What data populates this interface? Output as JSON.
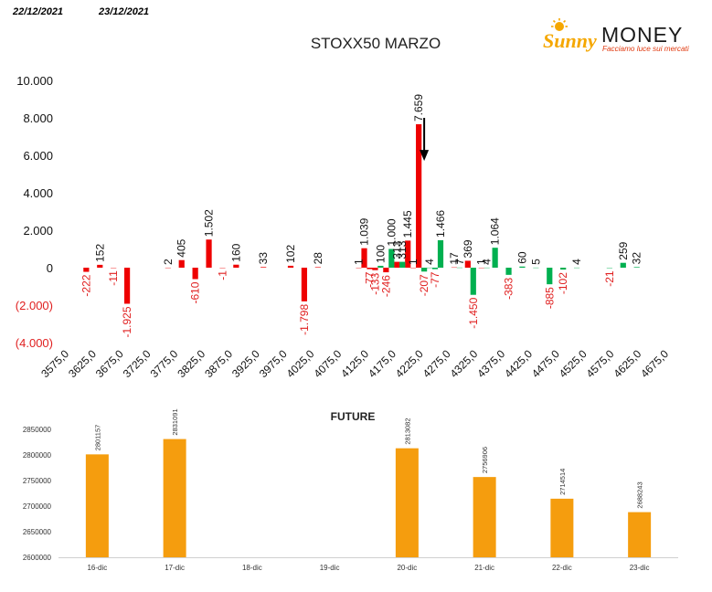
{
  "header": {
    "date1": "22/12/2021",
    "date2": "23/12/2021"
  },
  "logo": {
    "brand_left": "Sunny",
    "brand_right": "MONEY",
    "tagline": "Facciamo luce sui mercati",
    "colors": {
      "sun": "#f5a700",
      "brand": "#1a1a1a",
      "tagline": "#e03a10"
    }
  },
  "colors": {
    "red": "#ee0000",
    "green": "#00b050",
    "future": "#f59d0e",
    "negative_label": "#e02020",
    "arrow": "#000000"
  },
  "chart_data": [
    {
      "type": "bar",
      "title": "STOXX50 MARZO",
      "ylim": [
        -4000,
        10000
      ],
      "yticks": [
        10000,
        8000,
        6000,
        4000,
        2000,
        0,
        -2000,
        -4000
      ],
      "ytick_labels": [
        "10.000",
        "8.000",
        "6.000",
        "4.000",
        "2.000",
        "0",
        "(2.000)",
        "(4.000)"
      ],
      "xtick_labels": [
        "3575,0",
        "3625,0",
        "3675,0",
        "3725,0",
        "3775,0",
        "3825,0",
        "3875,0",
        "3925,0",
        "3975,0",
        "4025,0",
        "4075,0",
        "4125,0",
        "4175,0",
        "4225,0",
        "4275,0",
        "4325,0",
        "4375,0",
        "4425,0",
        "4475,0",
        "4525,0",
        "4575,0",
        "4625,0",
        "4675,0"
      ],
      "series": [
        {
          "color": "red",
          "points": [
            {
              "strike": 3612.5,
              "value": -222,
              "label": "-222"
            },
            {
              "strike": 3637.5,
              "value": 152,
              "label": "152"
            },
            {
              "strike": 3662.5,
              "value": -11,
              "label": "-11"
            },
            {
              "strike": 3687.5,
              "value": -1925,
              "label": "-1.925"
            },
            {
              "strike": 3762.5,
              "value": 2,
              "label": "2"
            },
            {
              "strike": 3787.5,
              "value": 405,
              "label": "405"
            },
            {
              "strike": 3812.5,
              "value": -610,
              "label": "-610"
            },
            {
              "strike": 3837.5,
              "value": 1502,
              "label": "1.502"
            },
            {
              "strike": 3862.5,
              "value": -1,
              "label": "-1"
            },
            {
              "strike": 3887.5,
              "value": 160,
              "label": "160"
            },
            {
              "strike": 3937.5,
              "value": 33,
              "label": "33"
            },
            {
              "strike": 3987.5,
              "value": 102,
              "label": "102"
            },
            {
              "strike": 4012.5,
              "value": -1798,
              "label": "-1.798"
            },
            {
              "strike": 4037.5,
              "value": 28,
              "label": "28"
            },
            {
              "strike": 4112.5,
              "value": 1,
              "label": "1"
            },
            {
              "strike": 4122.5,
              "value": 1039,
              "label": "1.039"
            },
            {
              "strike": 4132.5,
              "value": -77,
              "label": "-77"
            },
            {
              "strike": 4142.5,
              "value": -133,
              "label": "-133"
            },
            {
              "strike": 4162.5,
              "value": -246,
              "label": "-246"
            },
            {
              "strike": 4182.5,
              "value": 313,
              "label": "313"
            },
            {
              "strike": 4202.5,
              "value": 1445,
              "label": "1.445"
            },
            {
              "strike": 4212.5,
              "value": 1,
              "label": "1"
            },
            {
              "strike": 4222.5,
              "value": 7659,
              "label": "7.659"
            },
            {
              "strike": 4287.5,
              "value": 17,
              "label": "17"
            },
            {
              "strike": 4312.5,
              "value": 369,
              "label": "369"
            },
            {
              "strike": 4337.5,
              "value": 1,
              "label": "1"
            }
          ]
        },
        {
          "color": "green",
          "points": [
            {
              "strike": 4152.5,
              "value": 100,
              "label": "100"
            },
            {
              "strike": 4172.5,
              "value": 1000,
              "label": "1.000"
            },
            {
              "strike": 4192.5,
              "value": 313,
              "label": "313"
            },
            {
              "strike": 4232.5,
              "value": -207,
              "label": "-207"
            },
            {
              "strike": 4242.5,
              "value": 4,
              "label": "4"
            },
            {
              "strike": 4252.5,
              "value": -77,
              "label": "-77"
            },
            {
              "strike": 4262.5,
              "value": 1466,
              "label": "1.466"
            },
            {
              "strike": 4297.5,
              "value": 7,
              "label": "7"
            },
            {
              "strike": 4322.5,
              "value": -1450,
              "label": "-1.450"
            },
            {
              "strike": 4347.5,
              "value": 4,
              "label": "4"
            },
            {
              "strike": 4362.5,
              "value": 1064,
              "label": "1.064"
            },
            {
              "strike": 4387.5,
              "value": -383,
              "label": "-383"
            },
            {
              "strike": 4412.5,
              "value": 60,
              "label": "60"
            },
            {
              "strike": 4437.5,
              "value": 5,
              "label": "5"
            },
            {
              "strike": 4462.5,
              "value": -885,
              "label": "-885"
            },
            {
              "strike": 4487.5,
              "value": -102,
              "label": "-102"
            },
            {
              "strike": 4512.5,
              "value": 4,
              "label": "4"
            },
            {
              "strike": 4572.5,
              "value": -21,
              "label": "-21"
            },
            {
              "strike": 4597.5,
              "value": 259,
              "label": "259"
            },
            {
              "strike": 4622.5,
              "value": 32,
              "label": "32"
            }
          ]
        }
      ],
      "annotations": [
        {
          "type": "arrow-down",
          "strike": 4232.5,
          "from_value": 8000,
          "to_value": 5800
        }
      ]
    },
    {
      "type": "bar",
      "title": "FUTURE",
      "categories": [
        "16-dic",
        "17-dic",
        "18-dic",
        "19-dic",
        "20-dic",
        "21-dic",
        "22-dic",
        "23-dic"
      ],
      "values": [
        2801157,
        2831091,
        null,
        null,
        2813082,
        2756906,
        2714514,
        2688243
      ],
      "value_labels": [
        "2801157",
        "2831091",
        "",
        "",
        "2813082",
        "2756906",
        "2714514",
        "2688243"
      ],
      "ylim": [
        2600000,
        2850000
      ],
      "yticks": [
        2850000,
        2800000,
        2750000,
        2700000,
        2650000,
        2600000
      ],
      "ytick_labels": [
        "2850000",
        "2800000",
        "2750000",
        "2700000",
        "2650000",
        "2600000"
      ]
    }
  ]
}
